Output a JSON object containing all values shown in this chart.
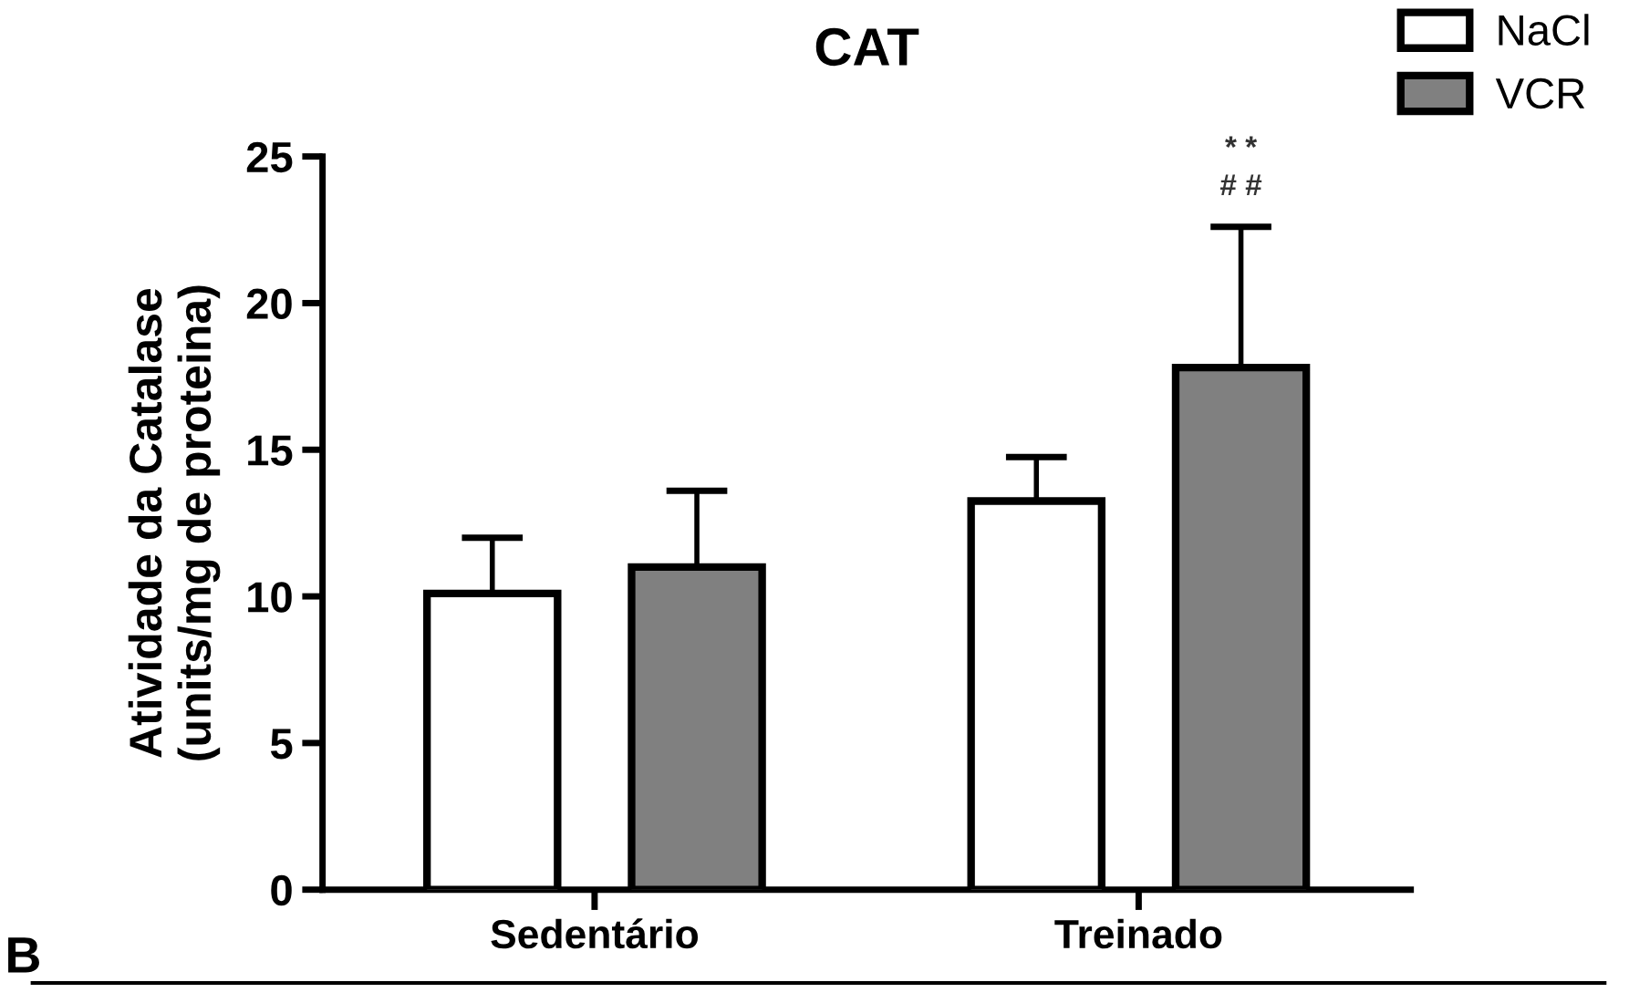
{
  "chart_data": {
    "type": "bar",
    "title": "CAT",
    "ylabel": "Atividade da Catalase\n(units/mg de proteina)",
    "categories": [
      "Sedentário",
      "Treinado"
    ],
    "series": [
      {
        "name": "NaCl",
        "color": "#ffffff",
        "values": [
          10.1,
          13.25
        ],
        "errors": [
          [
            10.1,
            12.0
          ],
          [
            13.25,
            14.75
          ]
        ]
      },
      {
        "name": "VCR",
        "color": "#808080",
        "values": [
          11.0,
          17.8
        ],
        "errors": [
          [
            11.0,
            13.6
          ],
          [
            17.8,
            22.6
          ]
        ]
      }
    ],
    "ylim": [
      0,
      25
    ],
    "yticks": [
      0,
      5,
      10,
      15,
      20,
      25
    ],
    "grid": false,
    "legend": "top right",
    "annotations": [
      "* *",
      "# #",
      "B"
    ]
  }
}
